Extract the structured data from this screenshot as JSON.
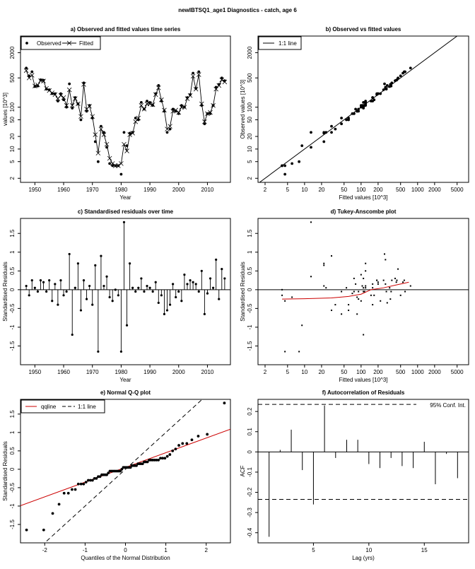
{
  "main_title": "newIBTSQ1_age1 Diagnostics - catch, age 6",
  "colors": {
    "fit_line": "#cc0000",
    "ink": "#000000"
  },
  "chart_data": [
    {
      "id": "a",
      "type": "line",
      "title": "a) Observed and fitted values time series",
      "xlabel": "Year",
      "ylabel": "values [10^3]",
      "yscale": "log",
      "xlim": [
        1945,
        2018
      ],
      "ylim": [
        1.6,
        5000
      ],
      "xticks": [
        1950,
        1960,
        1970,
        1980,
        1990,
        2000,
        2010
      ],
      "yticks": [
        2,
        5,
        10,
        20,
        50,
        100,
        500,
        2000
      ],
      "legend": {
        "position": "top-left",
        "observed": "Observed",
        "fitted": "Fitted"
      },
      "x": [
        1947,
        1948,
        1949,
        1950,
        1951,
        1952,
        1953,
        1954,
        1955,
        1956,
        1957,
        1958,
        1959,
        1960,
        1961,
        1962,
        1963,
        1964,
        1965,
        1966,
        1967,
        1968,
        1969,
        1970,
        1971,
        1972,
        1973,
        1974,
        1975,
        1976,
        1977,
        1978,
        1979,
        1980,
        1981,
        1982,
        1983,
        1984,
        1985,
        1986,
        1987,
        1988,
        1989,
        1990,
        1991,
        1992,
        1993,
        1994,
        1995,
        1996,
        1997,
        1998,
        1999,
        2000,
        2001,
        2002,
        2003,
        2004,
        2005,
        2006,
        2007,
        2008,
        2009,
        2010,
        2011,
        2012,
        2013,
        2014,
        2015,
        2016
      ],
      "observed": [
        860,
        560,
        700,
        310,
        320,
        450,
        440,
        270,
        260,
        210,
        210,
        140,
        210,
        150,
        100,
        360,
        95,
        170,
        120,
        50,
        380,
        80,
        110,
        55,
        15,
        5,
        35,
        25,
        11,
        4.5,
        4,
        4,
        4,
        2.5,
        25,
        12,
        24,
        25,
        55,
        50,
        130,
        90,
        140,
        130,
        110,
        210,
        330,
        140,
        80,
        25,
        30,
        90,
        80,
        70,
        110,
        100,
        170,
        200,
        650,
        280,
        700,
        110,
        40,
        70,
        70,
        110,
        300,
        350,
        500,
        430
      ],
      "fitted": [
        750,
        500,
        580,
        320,
        340,
        430,
        420,
        280,
        250,
        220,
        200,
        160,
        190,
        170,
        110,
        260,
        110,
        160,
        120,
        60,
        350,
        90,
        105,
        60,
        22,
        8,
        30,
        22,
        13,
        6,
        4.5,
        4,
        4,
        4.5,
        13,
        9,
        22,
        24,
        45,
        55,
        110,
        90,
        120,
        120,
        115,
        200,
        290,
        150,
        85,
        30,
        35,
        80,
        85,
        75,
        100,
        100,
        160,
        190,
        550,
        270,
        600,
        120,
        45,
        70,
        75,
        110,
        270,
        330,
        450,
        400
      ]
    },
    {
      "id": "b",
      "type": "scatter",
      "title": "b) Observed vs fitted values",
      "xlabel": "Fitted values [10^3]",
      "ylabel": "Observed values [10^3]",
      "xscale": "log",
      "yscale": "log",
      "xlim": [
        1.5,
        8000
      ],
      "ylim": [
        1.6,
        5000
      ],
      "xticks": [
        2,
        5,
        10,
        20,
        50,
        100,
        200,
        500,
        1000,
        2000,
        5000
      ],
      "yticks": [
        2,
        5,
        10,
        20,
        50,
        100,
        500,
        2000
      ],
      "legend": {
        "position": "top-left",
        "label": "1:1 line"
      },
      "points_from": "a"
    },
    {
      "id": "c",
      "type": "bar",
      "title": "c) Standardised residuals over time",
      "xlabel": "Year",
      "ylabel": "Standardised Residuals",
      "xlim": [
        1945,
        2018
      ],
      "ylim": [
        -2.0,
        1.9
      ],
      "xticks": [
        1950,
        1960,
        1970,
        1980,
        1990,
        2000,
        2010
      ],
      "yticks": [
        -1.5,
        -1,
        -0.5,
        0,
        0.5,
        1,
        1.5
      ],
      "x": [
        1947,
        1948,
        1949,
        1950,
        1951,
        1952,
        1953,
        1954,
        1955,
        1956,
        1957,
        1958,
        1959,
        1960,
        1961,
        1962,
        1963,
        1964,
        1965,
        1966,
        1967,
        1968,
        1969,
        1970,
        1971,
        1972,
        1973,
        1974,
        1975,
        1976,
        1977,
        1978,
        1979,
        1980,
        1981,
        1982,
        1983,
        1984,
        1985,
        1986,
        1987,
        1988,
        1989,
        1990,
        1991,
        1992,
        1993,
        1994,
        1995,
        1996,
        1997,
        1998,
        1999,
        2000,
        2001,
        2002,
        2003,
        2004,
        2005,
        2006,
        2007,
        2008,
        2009,
        2010,
        2011,
        2012,
        2013,
        2014,
        2015,
        2016
      ],
      "values": [
        0.1,
        -0.15,
        0.25,
        0.05,
        -0.05,
        0.25,
        0.2,
        -0.05,
        0.25,
        -0.3,
        0.15,
        -0.4,
        0.25,
        -0.15,
        -0.05,
        0.95,
        -1.2,
        0.05,
        0.7,
        -0.55,
        0.25,
        -0.25,
        0.1,
        -0.4,
        0.65,
        -1.65,
        0.9,
        0.1,
        0.35,
        -0.2,
        -0.3,
        0,
        -0.15,
        -1.65,
        1.8,
        -0.95,
        0.7,
        0.05,
        -0.05,
        0.05,
        0.3,
        -0.05,
        0.1,
        0.05,
        -0.05,
        0.2,
        -0.35,
        -0.15,
        -0.65,
        -0.55,
        -0.4,
        0.15,
        -0.2,
        -0.05,
        -0.3,
        0.4,
        0.15,
        0.25,
        0.2,
        0.15,
        -0.05,
        0.5,
        -0.65,
        -0.1,
        0.3,
        0.05,
        0.8,
        -0.25,
        0.55,
        0.3
      ]
    },
    {
      "id": "d",
      "type": "scatter",
      "title": "d) Tukey-Anscombe plot",
      "xlabel": "Fitted values [10^3]",
      "ylabel": "Standardised Residuals",
      "xscale": "log",
      "xlim": [
        1.5,
        8000
      ],
      "ylim": [
        -2.0,
        1.9
      ],
      "xticks": [
        2,
        5,
        10,
        20,
        50,
        100,
        200,
        500,
        1000,
        2000,
        5000
      ],
      "yticks": [
        -1.5,
        -1,
        -0.5,
        0,
        0.5,
        1,
        1.5
      ],
      "smoother": {
        "x": [
          4,
          10,
          30,
          60,
          100,
          150,
          250,
          400,
          700
        ],
        "y": [
          -0.25,
          -0.24,
          -0.22,
          -0.18,
          -0.12,
          0.0,
          0.05,
          0.12,
          0.2
        ]
      }
    },
    {
      "id": "e",
      "type": "scatter",
      "title": "e) Normal Q-Q plot",
      "xlabel": "Quantiles of the Normal Distribution",
      "ylabel": "Standardised Residuals",
      "xlim": [
        -2.6,
        2.6
      ],
      "ylim": [
        -2.0,
        1.9
      ],
      "xticks": [
        -2,
        -1,
        0,
        1,
        2
      ],
      "yticks": [
        -1.5,
        -1,
        -0.5,
        0,
        0.5,
        1,
        1.5
      ],
      "legend": {
        "position": "top-left",
        "qqline": "qqline",
        "oneone": "1:1 line"
      },
      "qqline": {
        "slope": 0.4,
        "intercept": 0.05
      },
      "points_from": "c"
    },
    {
      "id": "f",
      "type": "bar",
      "title": "f) Autocorrelation of Residuals",
      "xlabel": "Lag (yrs)",
      "ylabel": "ACF",
      "xlim": [
        0,
        19
      ],
      "ylim": [
        -0.45,
        0.26
      ],
      "xticks": [
        5,
        10,
        15
      ],
      "yticks": [
        -0.4,
        -0.3,
        -0.2,
        -0.1,
        0,
        0.1,
        0.2
      ],
      "conf": 0.235,
      "conf_label": "95% Conf. Int.",
      "lags": [
        1,
        2,
        3,
        4,
        5,
        6,
        7,
        8,
        9,
        10,
        11,
        12,
        13,
        14,
        15,
        16,
        17,
        18
      ],
      "acf": [
        -0.42,
        0.01,
        0.11,
        -0.09,
        -0.26,
        0.23,
        -0.03,
        0.06,
        0.06,
        -0.06,
        -0.08,
        -0.03,
        -0.07,
        -0.08,
        0.05,
        -0.16,
        -0.01,
        -0.13
      ]
    }
  ]
}
